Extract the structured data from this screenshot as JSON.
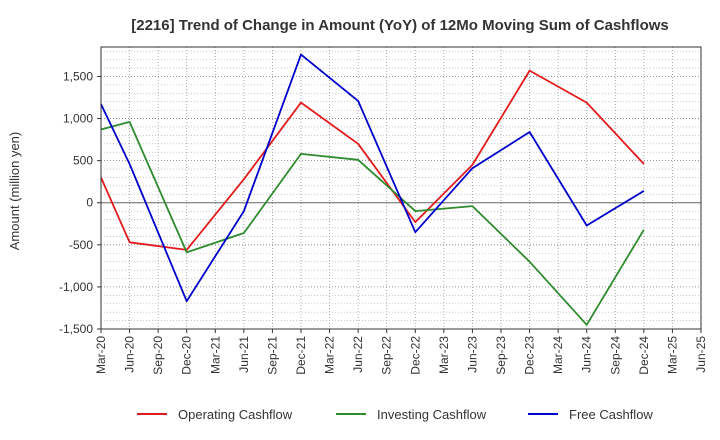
{
  "chart_data": {
    "type": "line",
    "title": "[2216]  Trend of Change in Amount (YoY) of 12Mo Moving Sum of Cashflows",
    "xlabel": "",
    "ylabel": "Amount (million yen)",
    "categories": [
      "Mar-20",
      "Jun-20",
      "Sep-20",
      "Dec-20",
      "Mar-21",
      "Jun-21",
      "Sep-21",
      "Dec-21",
      "Mar-22",
      "Jun-22",
      "Sep-22",
      "Dec-22",
      "Mar-23",
      "Jun-23",
      "Sep-23",
      "Dec-23",
      "Mar-24",
      "Jun-24",
      "Sep-24",
      "Dec-24",
      "Mar-25",
      "Jun-25"
    ],
    "ylim": [
      -1500,
      1850
    ],
    "yticks": [
      -1500,
      -1000,
      -500,
      0,
      500,
      1000,
      1500
    ],
    "ytick_labels": [
      "-1,500",
      "-1,000",
      "-500",
      "0",
      "500",
      "1,000",
      "1,500"
    ],
    "grid": true,
    "legend_position": "bottom",
    "series": [
      {
        "name": "Operating Cashflow",
        "color": "#e31a1c",
        "values": [
          300,
          -470,
          null,
          -560,
          null,
          280,
          null,
          1190,
          null,
          700,
          null,
          -230,
          null,
          450,
          null,
          1570,
          null,
          1190,
          null,
          460,
          null,
          null
        ]
      },
      {
        "name": "Investing Cashflow",
        "color": "#2e8b2e",
        "values": [
          870,
          960,
          null,
          -590,
          null,
          -360,
          null,
          580,
          null,
          510,
          null,
          -100,
          null,
          -40,
          null,
          -700,
          null,
          -1450,
          null,
          -320,
          null,
          null
        ]
      },
      {
        "name": "Free Cashflow",
        "color": "#0000cc",
        "values": [
          1170,
          460,
          null,
          -1170,
          null,
          -100,
          null,
          1760,
          null,
          1210,
          null,
          -350,
          null,
          410,
          null,
          840,
          null,
          -270,
          null,
          140,
          null,
          null
        ]
      }
    ]
  }
}
